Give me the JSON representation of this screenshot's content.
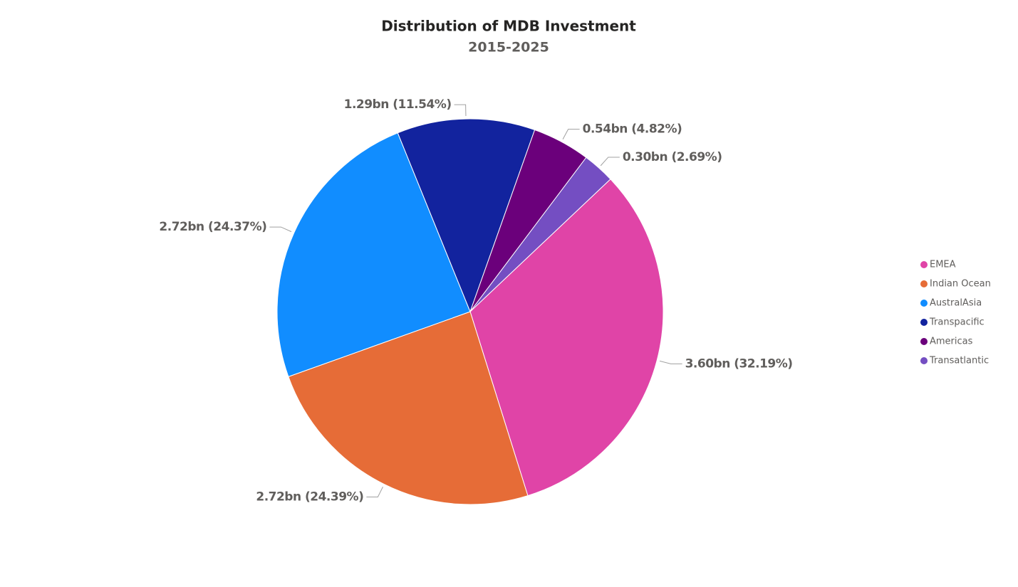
{
  "chart_data": {
    "type": "pie",
    "title": "Distribution of MDB Investment",
    "subtitle": "2015-2025",
    "categories": [
      "EMEA",
      "Indian Ocean",
      "AustralAsia",
      "Transpacific",
      "Americas",
      "Transatlantic"
    ],
    "values": [
      3.6,
      2.72,
      2.72,
      1.29,
      0.54,
      0.3
    ],
    "value_labels": [
      "3.60bn (32.19%)",
      "2.72bn (24.39%)",
      "2.72bn (24.37%)",
      "1.29bn (11.54%)",
      "0.54bn (4.82%)",
      "0.30bn (2.69%)"
    ],
    "colors": [
      "#e044a7",
      "#e66c37",
      "#118dff",
      "#12239e",
      "#6b007b",
      "#744ec2"
    ],
    "legend": "right"
  }
}
